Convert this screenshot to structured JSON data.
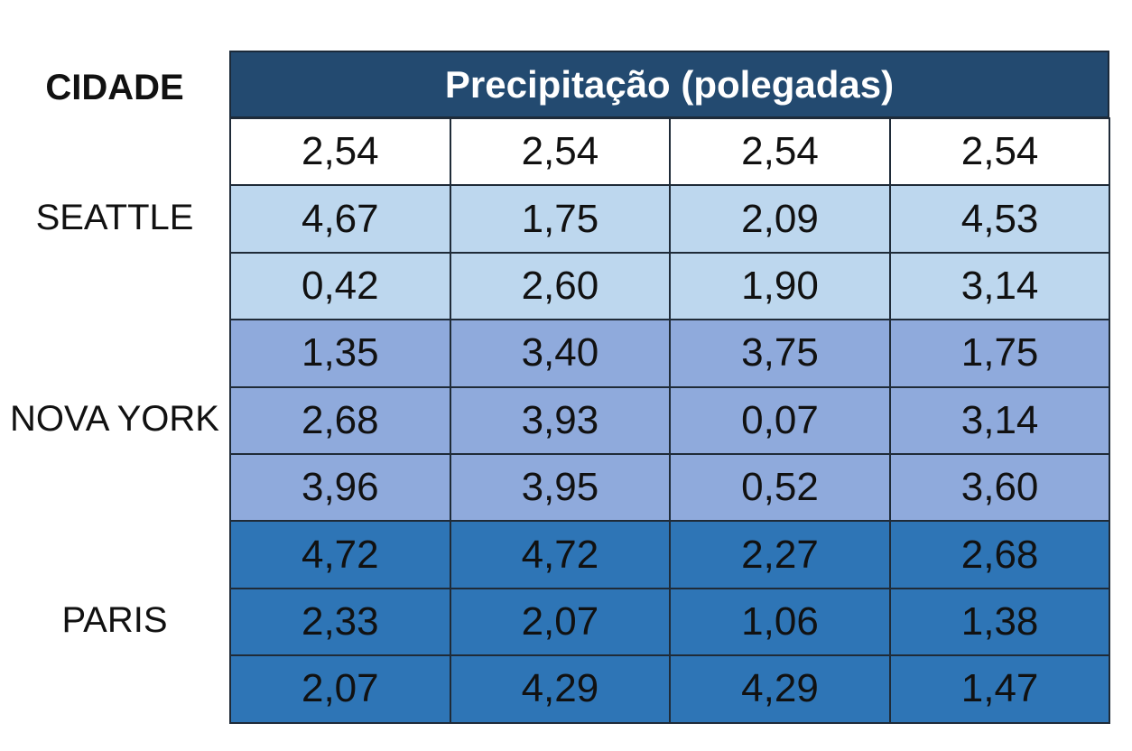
{
  "header": {
    "city_label": "CIDADE",
    "title": "Precipitação (polegadas)"
  },
  "first_row": [
    "2,54",
    "2,54",
    "2,54",
    "2,54"
  ],
  "groups": [
    {
      "city": "SEATTLE",
      "rows": [
        [
          "4,67",
          "1,75",
          "2,09",
          "4,53"
        ],
        [
          "0,42",
          "2,60",
          "1,90",
          "3,14"
        ]
      ]
    },
    {
      "city": "NOVA YORK",
      "rows": [
        [
          "1,35",
          "3,40",
          "3,75",
          "1,75"
        ],
        [
          "2,68",
          "3,93",
          "0,07",
          "3,14"
        ],
        [
          "3,96",
          "3,95",
          "0,52",
          "3,60"
        ]
      ]
    },
    {
      "city": "PARIS",
      "rows": [
        [
          "4,72",
          "4,72",
          "2,27",
          "2,68"
        ],
        [
          "2,33",
          "2,07",
          "1,06",
          "1,38"
        ],
        [
          "2,07",
          "4,29",
          "4,29",
          "1,47"
        ]
      ]
    }
  ]
}
